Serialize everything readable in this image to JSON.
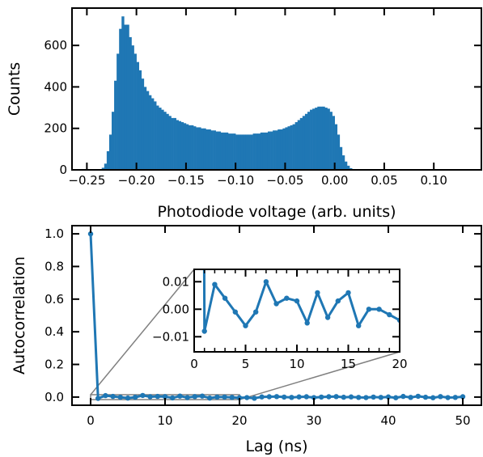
{
  "colors": {
    "series": "#1f77b4",
    "axes": "#000000",
    "connector": "#808080"
  },
  "chart_data": [
    {
      "type": "bar",
      "subtype": "histogram",
      "xlabel": "Photodiode voltage (arb. units)",
      "ylabel": "Counts",
      "xlim": [
        -0.265,
        0.148
      ],
      "ylim": [
        0,
        780
      ],
      "xticks": [
        -0.25,
        -0.2,
        -0.15,
        -0.1,
        -0.05,
        0.0,
        0.05,
        0.1
      ],
      "xtick_labels": [
        "−0.25",
        "−0.20",
        "−0.15",
        "−0.10",
        "−0.05",
        "0.00",
        "0.05",
        "0.10"
      ],
      "yticks": [
        0,
        200,
        400,
        600
      ],
      "ytick_labels": [
        "0",
        "200",
        "400",
        "600"
      ],
      "bin_start": -0.2375,
      "bin_width": 0.0025,
      "values": [
        3,
        10,
        30,
        90,
        170,
        280,
        430,
        560,
        680,
        740,
        700,
        700,
        640,
        600,
        560,
        520,
        480,
        440,
        400,
        380,
        360,
        345,
        330,
        310,
        300,
        290,
        280,
        270,
        260,
        250,
        250,
        240,
        235,
        230,
        225,
        220,
        215,
        215,
        210,
        205,
        205,
        200,
        200,
        195,
        195,
        190,
        190,
        185,
        185,
        180,
        180,
        180,
        175,
        175,
        175,
        170,
        170,
        170,
        170,
        170,
        170,
        170,
        175,
        175,
        175,
        180,
        180,
        180,
        185,
        185,
        190,
        190,
        195,
        195,
        200,
        205,
        210,
        215,
        220,
        230,
        240,
        250,
        260,
        270,
        280,
        290,
        295,
        300,
        305,
        305,
        305,
        300,
        295,
        280,
        260,
        220,
        170,
        110,
        70,
        40,
        20,
        8,
        4
      ],
      "grid": false
    },
    {
      "type": "line",
      "xlabel": "Lag (ns)",
      "ylabel": "Autocorrelation",
      "xlim": [
        -2.5,
        52.5
      ],
      "ylim": [
        -0.05,
        1.05
      ],
      "xticks": [
        0,
        10,
        20,
        30,
        40,
        50
      ],
      "xtick_labels": [
        "0",
        "10",
        "20",
        "30",
        "40",
        "50"
      ],
      "yticks": [
        0.0,
        0.2,
        0.4,
        0.6,
        0.8,
        1.0
      ],
      "ytick_labels": [
        "0.0",
        "0.2",
        "0.4",
        "0.6",
        "0.8",
        "1.0"
      ],
      "series": [
        {
          "x": [
            0,
            1,
            2,
            3,
            4,
            5,
            6,
            7,
            8,
            9,
            10,
            11,
            12,
            13,
            14,
            15,
            16,
            17,
            18,
            19,
            20,
            21,
            22,
            23,
            24,
            25,
            26,
            27,
            28,
            29,
            30,
            31,
            32,
            33,
            34,
            35,
            36,
            37,
            38,
            39,
            40,
            41,
            42,
            43,
            44,
            45,
            46,
            47,
            48,
            49,
            50
          ],
          "values": [
            1.0,
            -0.008,
            0.009,
            0.004,
            -0.001,
            -0.006,
            -0.001,
            0.01,
            0.002,
            0.004,
            0.003,
            -0.005,
            0.006,
            -0.003,
            0.003,
            0.006,
            -0.006,
            0.0,
            0.0,
            -0.002,
            -0.004,
            -0.003,
            -0.007,
            0.001,
            0.002,
            0.003,
            0.0,
            -0.002,
            0.001,
            0.002,
            -0.003,
            0.0,
            0.002,
            0.003,
            -0.001,
            0.001,
            -0.002,
            -0.003,
            0.0,
            -0.002,
            0.001,
            -0.004,
            0.004,
            -0.002,
            0.005,
            -0.001,
            -0.004,
            0.003,
            -0.003,
            -0.002,
            0.002
          ]
        }
      ],
      "grid": false,
      "inset": {
        "xlim": [
          0,
          20
        ],
        "ylim": [
          -0.0155,
          0.0145
        ],
        "xticks": [
          0,
          5,
          10,
          15,
          20
        ],
        "xtick_labels": [
          "0",
          "5",
          "10",
          "15",
          "20"
        ],
        "yticks": [
          -0.01,
          0.0,
          0.01
        ],
        "ytick_labels": [
          "−0.01",
          "0.00",
          "0.01"
        ]
      }
    }
  ]
}
